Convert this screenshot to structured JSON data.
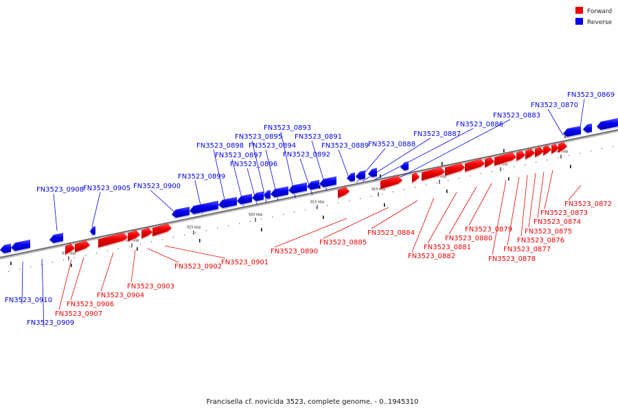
{
  "caption": "Francisella cf. novicida 3523, complete genome. - 0..1945310",
  "legend": [
    {
      "label": "Forward",
      "color": "#ee0000"
    },
    {
      "label": "Reverse",
      "color": "#0000ee"
    }
  ],
  "colors": {
    "forward": "#ee0000",
    "reverse": "#0000ee",
    "backbone": "#777777"
  },
  "ticks": [
    "935 kbp",
    "930 kbp",
    "925 kbp",
    "920 kbp",
    "915 kbp",
    "910 kbp",
    "905 kbp",
    "900 kbp",
    "895 kbp"
  ],
  "forward_genes": [
    "FN3523_0872",
    "FN3523_0873",
    "FN3523_0874",
    "FN3523_0875",
    "FN3523_0876",
    "FN3523_0877",
    "FN3523_0878",
    "FN3523_0879",
    "FN3523_0880",
    "FN3523_0881",
    "FN3523_0882",
    "FN3523_0884",
    "FN3523_0885",
    "FN3523_0890",
    "FN3523_0901",
    "FN3523_0902",
    "FN3523_0903",
    "FN3523_0904",
    "FN3523_0906",
    "FN3523_0907"
  ],
  "reverse_genes": [
    "FN3523_0869",
    "FN3523_0870",
    "FN3523_0883",
    "FN3523_0886",
    "FN3523_0887",
    "FN3523_0888",
    "FN3523_0889",
    "FN3523_0891",
    "FN3523_0892",
    "FN3523_0893",
    "FN3523_0894",
    "FN3523_0895",
    "FN3523_0896",
    "FN3523_0897",
    "FN3523_0898",
    "FN3523_0899",
    "FN3523_0900",
    "FN3523_0905",
    "FN3523_0908",
    "FN3523_0909",
    "FN3523_0910"
  ]
}
